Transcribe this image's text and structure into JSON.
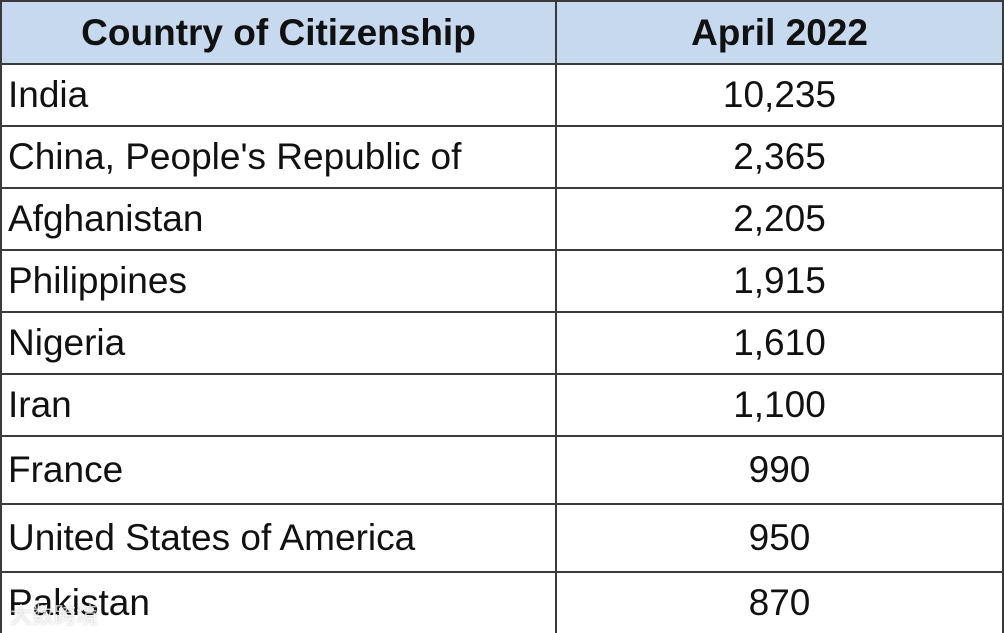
{
  "table": {
    "header": [
      "Country of Citizenship",
      "April 2022"
    ],
    "rows": [
      [
        "India",
        "10,235"
      ],
      [
        "China, People's Republic of",
        "2,365"
      ],
      [
        "Afghanistan",
        "2,205"
      ],
      [
        "Philippines",
        "1,915"
      ],
      [
        "Nigeria",
        "1,610"
      ],
      [
        "Iran",
        "1,100"
      ],
      [
        "France",
        "990"
      ],
      [
        "United States of America",
        "950"
      ],
      [
        "Pakistan",
        "870"
      ]
    ]
  },
  "watermark": "大数跨境"
}
